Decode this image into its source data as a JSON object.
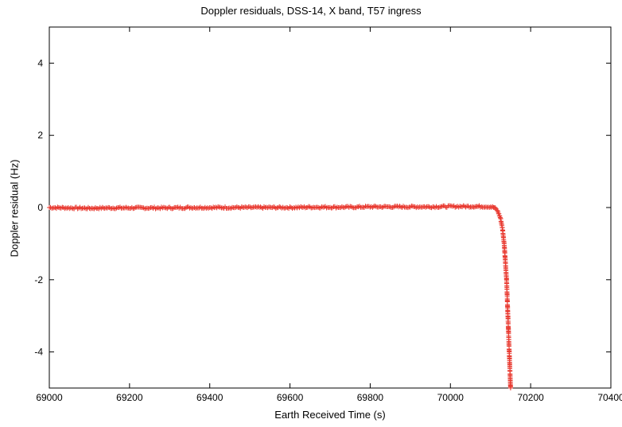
{
  "chart_data": {
    "type": "scatter",
    "title": "Doppler residuals, DSS-14, X band, T57 ingress",
    "xlabel": "Earth Received Time (s)",
    "ylabel": "Doppler residual (Hz)",
    "xlim": [
      69000,
      70400
    ],
    "ylim": [
      -5,
      5
    ],
    "x_ticks": [
      69000,
      69200,
      69400,
      69600,
      69800,
      70000,
      70200,
      70400
    ],
    "x_tick_labels": [
      "69000",
      "69200",
      "69400",
      "69600",
      "69800",
      "70000",
      "70200",
      "70400"
    ],
    "y_ticks": [
      -4,
      -2,
      0,
      2,
      4
    ],
    "y_tick_labels": [
      "-4",
      "-2",
      "0",
      "2",
      "4"
    ],
    "grid": false,
    "legend": "none",
    "marker": "plus",
    "color": "#e8382f",
    "series": [
      {
        "x": [
          69000,
          69050,
          69100,
          69150,
          69200,
          69250,
          69300,
          69350,
          69400,
          69450,
          69500,
          69550,
          69600,
          69650,
          69700,
          69750,
          69800,
          69850,
          69900,
          69950,
          70000,
          70050,
          70080,
          70100,
          70110,
          70118,
          70125,
          70130,
          70134,
          70137,
          70140,
          70142,
          70144,
          70146,
          70148,
          70150
        ],
        "y": [
          0.0,
          -0.01,
          -0.02,
          -0.01,
          -0.01,
          -0.01,
          -0.01,
          0.0,
          0.0,
          0.0,
          0.0,
          0.0,
          0.0,
          0.01,
          0.01,
          0.01,
          0.02,
          0.02,
          0.02,
          0.02,
          0.03,
          0.03,
          0.03,
          0.02,
          0.0,
          -0.1,
          -0.3,
          -0.6,
          -1.0,
          -1.5,
          -2.0,
          -2.6,
          -3.2,
          -3.8,
          -4.4,
          -5.0
        ]
      }
    ]
  }
}
